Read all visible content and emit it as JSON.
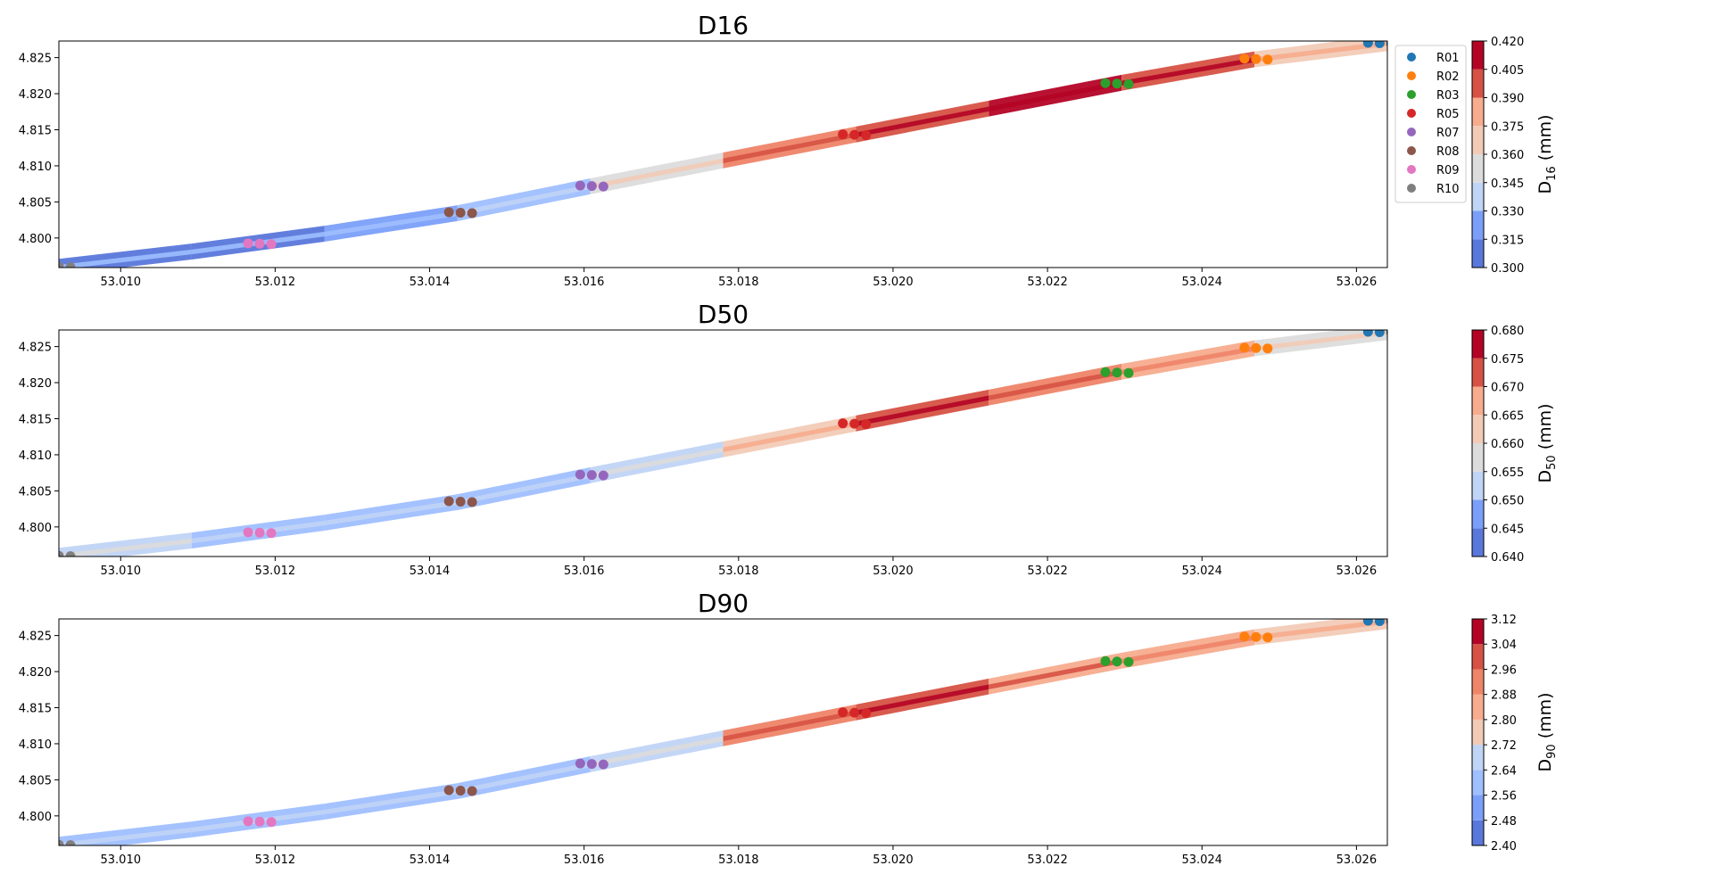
{
  "figure": {
    "panels": [
      {
        "key": "d16",
        "title": "D16"
      },
      {
        "key": "d50",
        "title": "D50"
      },
      {
        "key": "d90",
        "title": "D90"
      }
    ]
  },
  "legend": {
    "placement": "right of top panel",
    "entries": [
      {
        "label": "R01",
        "color": "#1f77b4"
      },
      {
        "label": "R02",
        "color": "#ff7f0e"
      },
      {
        "label": "R03",
        "color": "#2ca02c"
      },
      {
        "label": "R05",
        "color": "#d62728"
      },
      {
        "label": "R07",
        "color": "#9467bd"
      },
      {
        "label": "R08",
        "color": "#8c564b"
      },
      {
        "label": "R09",
        "color": "#e377c2"
      },
      {
        "label": "R10",
        "color": "#7f7f7f"
      }
    ]
  },
  "colormap": {
    "name": "coolwarm",
    "colors": [
      "#5a77db",
      "#7b9ff9",
      "#9fbfff",
      "#c0d4f5",
      "#dddcdc",
      "#f2cbb7",
      "#f7ac8e",
      "#ee8468",
      "#d65244",
      "#b40426"
    ]
  },
  "chart_data": [
    {
      "type": "contour+scatter",
      "title": "D16",
      "xlim": [
        53.0092,
        53.0264
      ],
      "ylim": [
        4.7959,
        4.8273
      ],
      "xticks": [
        "53.010",
        "53.012",
        "53.014",
        "53.016",
        "53.018",
        "53.020",
        "53.022",
        "53.024",
        "53.026"
      ],
      "xtick_values": [
        53.01,
        53.012,
        53.014,
        53.016,
        53.018,
        53.02,
        53.022,
        53.024,
        53.026
      ],
      "yticks": [
        "4.800",
        "4.805",
        "4.810",
        "4.815",
        "4.820",
        "4.825"
      ],
      "ytick_values": [
        4.8,
        4.805,
        4.81,
        4.815,
        4.82,
        4.825
      ],
      "colorbar": {
        "label_main": "D",
        "label_sub": "16",
        "label_unit": " (mm)",
        "ticks": [
          "0.300",
          "0.315",
          "0.330",
          "0.345",
          "0.360",
          "0.375",
          "0.390",
          "0.405",
          "0.420"
        ],
        "range": [
          0.3,
          0.42
        ]
      },
      "field_values": [
        0.31,
        0.31,
        0.32,
        0.33,
        0.35,
        0.39,
        0.4,
        0.42,
        0.4,
        0.36
      ],
      "points": [
        {
          "site": "R01",
          "x": 53.0263,
          "y": 4.827
        },
        {
          "site": "R02",
          "x": 53.0247,
          "y": 4.8248
        },
        {
          "site": "R03",
          "x": 53.0229,
          "y": 4.8214
        },
        {
          "site": "R05",
          "x": 53.0195,
          "y": 4.8143
        },
        {
          "site": "R07",
          "x": 53.0161,
          "y": 4.8072
        },
        {
          "site": "R08",
          "x": 53.0144,
          "y": 4.8035
        },
        {
          "site": "R09",
          "x": 53.0118,
          "y": 4.7992
        },
        {
          "site": "R10",
          "x": 53.0092,
          "y": 4.796
        }
      ]
    },
    {
      "type": "contour+scatter",
      "title": "D50",
      "xlim": [
        53.0092,
        53.0264
      ],
      "ylim": [
        4.7959,
        4.8273
      ],
      "xticks": [
        "53.010",
        "53.012",
        "53.014",
        "53.016",
        "53.018",
        "53.020",
        "53.022",
        "53.024",
        "53.026"
      ],
      "xtick_values": [
        53.01,
        53.012,
        53.014,
        53.016,
        53.018,
        53.02,
        53.022,
        53.024,
        53.026
      ],
      "yticks": [
        "4.800",
        "4.805",
        "4.810",
        "4.815",
        "4.820",
        "4.825"
      ],
      "ytick_values": [
        4.8,
        4.805,
        4.81,
        4.815,
        4.82,
        4.825
      ],
      "colorbar": {
        "label_main": "D",
        "label_sub": "50",
        "label_unit": " (mm)",
        "ticks": [
          "0.640",
          "0.645",
          "0.650",
          "0.655",
          "0.660",
          "0.665",
          "0.670",
          "0.675",
          "0.680"
        ],
        "range": [
          0.64,
          0.68
        ]
      },
      "field_values": [
        0.652,
        0.65,
        0.65,
        0.648,
        0.652,
        0.662,
        0.672,
        0.668,
        0.665,
        0.658
      ],
      "points": [
        {
          "site": "R01",
          "x": 53.0263,
          "y": 4.827
        },
        {
          "site": "R02",
          "x": 53.0247,
          "y": 4.8248
        },
        {
          "site": "R03",
          "x": 53.0229,
          "y": 4.8214
        },
        {
          "site": "R05",
          "x": 53.0195,
          "y": 4.8143
        },
        {
          "site": "R07",
          "x": 53.0161,
          "y": 4.8072
        },
        {
          "site": "R08",
          "x": 53.0144,
          "y": 4.8035
        },
        {
          "site": "R09",
          "x": 53.0118,
          "y": 4.7992
        },
        {
          "site": "R10",
          "x": 53.0092,
          "y": 4.796
        }
      ]
    },
    {
      "type": "contour+scatter",
      "title": "D90",
      "xlim": [
        53.0092,
        53.0264
      ],
      "ylim": [
        4.7959,
        4.8273
      ],
      "xticks": [
        "53.010",
        "53.012",
        "53.014",
        "53.016",
        "53.018",
        "53.020",
        "53.022",
        "53.024",
        "53.026"
      ],
      "xtick_values": [
        53.01,
        53.012,
        53.014,
        53.016,
        53.018,
        53.02,
        53.022,
        53.024,
        53.026
      ],
      "yticks": [
        "4.800",
        "4.805",
        "4.810",
        "4.815",
        "4.820",
        "4.825"
      ],
      "ytick_values": [
        4.8,
        4.805,
        4.81,
        4.815,
        4.82,
        4.825
      ],
      "colorbar": {
        "label_main": "D",
        "label_sub": "90",
        "label_unit": " (mm)",
        "ticks": [
          "2.40",
          "2.48",
          "2.56",
          "2.64",
          "2.72",
          "2.80",
          "2.88",
          "2.96",
          "3.04",
          "3.12"
        ],
        "range": [
          2.4,
          3.12
        ]
      },
      "field_values": [
        2.56,
        2.58,
        2.55,
        2.57,
        2.62,
        2.96,
        2.98,
        2.9,
        2.84,
        2.78
      ],
      "points": [
        {
          "site": "R01",
          "x": 53.0263,
          "y": 4.827
        },
        {
          "site": "R02",
          "x": 53.0247,
          "y": 4.8248
        },
        {
          "site": "R03",
          "x": 53.0229,
          "y": 4.8214
        },
        {
          "site": "R05",
          "x": 53.0195,
          "y": 4.8143
        },
        {
          "site": "R07",
          "x": 53.0161,
          "y": 4.8072
        },
        {
          "site": "R08",
          "x": 53.0144,
          "y": 4.8035
        },
        {
          "site": "R09",
          "x": 53.0118,
          "y": 4.7992
        },
        {
          "site": "R10",
          "x": 53.0092,
          "y": 4.796
        }
      ]
    }
  ]
}
